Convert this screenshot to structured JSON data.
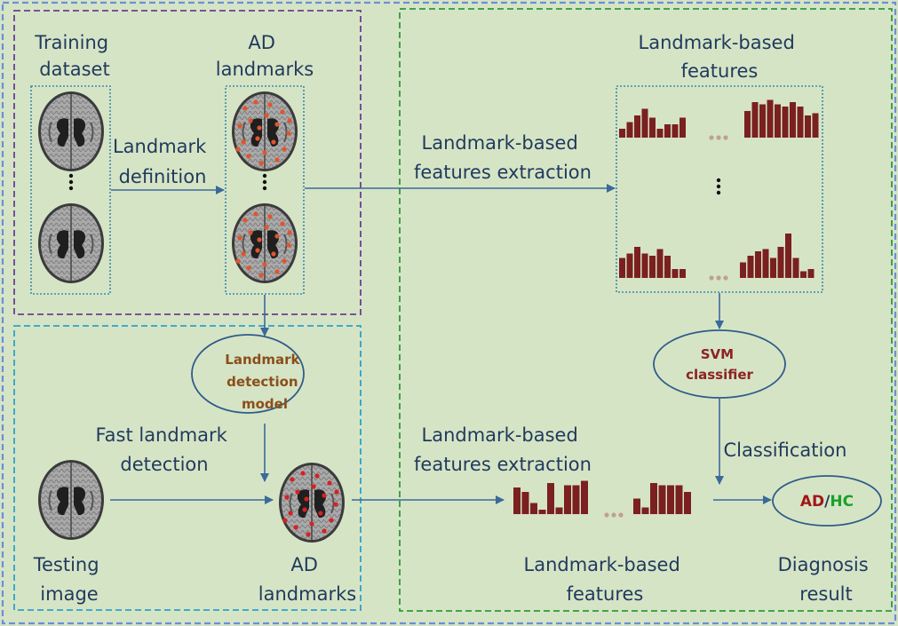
{
  "labels": {
    "training_dataset": [
      "Training",
      "dataset"
    ],
    "ad_landmarks_top": [
      "AD",
      "landmarks"
    ],
    "landmark_definition": [
      "Landmark",
      "definition"
    ],
    "lm_features_top": [
      "Landmark-based",
      "features"
    ],
    "extraction_top": [
      "Landmark-based",
      "features extraction"
    ],
    "detection_model": [
      "Landmark",
      "detection",
      "model"
    ],
    "svm_classifier": [
      "SVM",
      "classifier"
    ],
    "fast_detection": [
      "Fast landmark",
      "detection"
    ],
    "extraction_bottom": [
      "Landmark-based",
      "features extraction"
    ],
    "classification": "Classification",
    "testing_image": [
      "Testing",
      "image"
    ],
    "ad_landmarks_bottom": [
      "AD",
      "landmarks"
    ],
    "lm_features_bottom": [
      "Landmark-based",
      "features"
    ],
    "diagnosis_result": [
      "Diagnosis",
      "result"
    ],
    "result_ad": "AD",
    "result_sep": "/",
    "result_hc": "HC"
  },
  "colors": {
    "background": "#d6e4c6",
    "outer_border": "#6a8fd8",
    "training_box": "#6a3f8f",
    "testing_box": "#2aa3c9",
    "classify_box": "#2e9a3a",
    "inner_box": "#3a8ca6",
    "bar": "#7a2020",
    "dots": "#c0a090",
    "result_ad": "#a01818",
    "result_hc": "#1aa02a"
  },
  "histograms": {
    "top_row1_left": [
      4,
      7,
      10,
      13,
      9,
      4,
      6,
      6,
      9
    ],
    "top_row1_right": [
      12,
      16,
      15,
      17,
      15,
      14,
      16,
      14,
      10,
      11
    ],
    "top_row2_left": [
      9,
      11,
      14,
      11,
      10,
      13,
      10,
      4,
      4
    ],
    "top_row2_right": [
      7,
      10,
      12,
      13,
      9,
      14,
      20,
      9,
      3,
      4
    ],
    "bottom_left": [
      12,
      10,
      5,
      2,
      14,
      3,
      13,
      13,
      15
    ],
    "bottom_right": [
      7,
      3,
      14,
      13,
      13,
      13,
      10
    ]
  }
}
